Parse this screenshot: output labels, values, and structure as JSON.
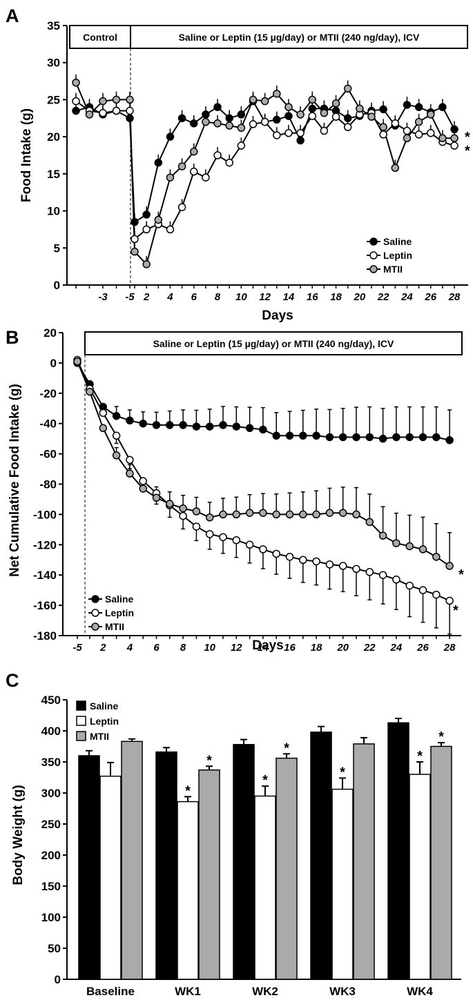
{
  "panels": {
    "a": "A",
    "b": "B",
    "c": "C"
  },
  "colors": {
    "saline": "#000000",
    "leptin": "#ffffff",
    "mtii": "#aaaaaa",
    "axis": "#000000"
  },
  "chart_data": [
    {
      "type": "line",
      "panel": "A",
      "xlabel": "Days",
      "ylabel": "Food Intake (g)",
      "ylim": [
        0,
        35
      ],
      "yticks": [
        "0",
        "5",
        "10",
        "15",
        "20",
        "25",
        "30",
        "35"
      ],
      "xticks": [
        "-3",
        "-5",
        "2",
        "4",
        "6",
        "8",
        "10",
        "12",
        "14",
        "16",
        "18",
        "20",
        "22",
        "24",
        "26",
        "28"
      ],
      "phase_labels": {
        "control": "Control",
        "treatment": "Saline or Leptin (15 µg/day) or MTII (240 ng/day), ICV"
      },
      "x": [
        -9,
        -8,
        -7,
        -6,
        -5,
        1,
        2,
        3,
        4,
        5,
        6,
        7,
        8,
        9,
        10,
        11,
        12,
        13,
        14,
        15,
        16,
        17,
        18,
        19,
        20,
        21,
        22,
        23,
        24,
        25,
        26,
        27,
        28
      ],
      "series": [
        {
          "name": "Saline",
          "key": "saline",
          "values": [
            23.5,
            24.0,
            23.0,
            23.5,
            22.5,
            8.5,
            9.5,
            16.5,
            20.0,
            22.5,
            21.8,
            23.0,
            24.0,
            22.5,
            23.0,
            24.8,
            22.0,
            22.3,
            22.8,
            19.5,
            23.8,
            23.8,
            23.5,
            22.5,
            22.8,
            23.5,
            23.7,
            21.5,
            24.3,
            24.0,
            23.3,
            24.0,
            21.0
          ]
        },
        {
          "name": "Leptin",
          "key": "leptin",
          "values": [
            24.8,
            23.5,
            23.2,
            23.5,
            23.5,
            6.2,
            7.5,
            8.2,
            7.5,
            10.5,
            15.3,
            14.5,
            17.5,
            16.5,
            18.8,
            21.7,
            22.0,
            20.2,
            20.5,
            20.5,
            22.8,
            20.8,
            22.7,
            21.3,
            23.0,
            23.2,
            20.3,
            21.8,
            20.8,
            20.3,
            20.5,
            19.3,
            18.8
          ]
        },
        {
          "name": "MTII",
          "key": "mtii",
          "values": [
            27.3,
            23.0,
            24.8,
            25.0,
            25.0,
            4.5,
            2.8,
            8.8,
            14.5,
            16.0,
            18.0,
            22.0,
            21.8,
            21.5,
            21.2,
            25.0,
            24.8,
            25.8,
            24.0,
            23.0,
            25.0,
            23.2,
            24.5,
            26.5,
            23.8,
            22.7,
            21.3,
            15.8,
            19.8,
            22.0,
            23.0,
            19.8,
            19.8
          ]
        }
      ],
      "legend": [
        "Saline",
        "Leptin",
        "MTII"
      ],
      "legend_placement": "bottom-right",
      "annotations": [
        "*",
        "*"
      ]
    },
    {
      "type": "line",
      "panel": "B",
      "xlabel": "Days",
      "ylabel": "Net Cumulative Food  Intake (g)",
      "ylim": [
        -180,
        20
      ],
      "yticks": [
        "20",
        "0",
        "-20",
        "-40",
        "-60",
        "-80",
        "-100",
        "-120",
        "-140",
        "-160",
        "-180"
      ],
      "xticks": [
        "-5",
        "2",
        "4",
        "6",
        "8",
        "10",
        "12",
        "14",
        "16",
        "18",
        "20",
        "22",
        "24",
        "26",
        "28"
      ],
      "phase_labels": {
        "treatment": "Saline or Leptin (15 µg/day) or MTII (240 ng/day), ICV"
      },
      "x": [
        -5,
        1,
        2,
        3,
        4,
        5,
        6,
        7,
        8,
        9,
        10,
        11,
        12,
        13,
        14,
        15,
        16,
        17,
        18,
        19,
        20,
        21,
        22,
        23,
        24,
        25,
        26,
        27,
        28
      ],
      "series": [
        {
          "name": "Saline",
          "key": "saline",
          "values": [
            0,
            -14,
            -29,
            -35,
            -38,
            -40,
            -41,
            -41,
            -41,
            -42,
            -42,
            -41,
            -42,
            -43,
            -44,
            -48,
            -48,
            -48,
            -48,
            -49,
            -49,
            -49,
            -49,
            -50,
            -49,
            -49,
            -49,
            -49,
            -51
          ]
        },
        {
          "name": "Leptin",
          "key": "leptin",
          "values": [
            2,
            -17,
            -33,
            -48,
            -64,
            -78,
            -86,
            -94,
            -101,
            -108,
            -113,
            -115,
            -117,
            -120,
            -123,
            -126,
            -128,
            -130,
            -131,
            -133,
            -134,
            -136,
            -138,
            -140,
            -143,
            -147,
            -150,
            -153,
            -157
          ]
        },
        {
          "name": "MTII",
          "key": "mtii",
          "values": [
            1,
            -19,
            -43,
            -61,
            -73,
            -83,
            -89,
            -93,
            -96,
            -98,
            -102,
            -100,
            -100,
            -99,
            -99,
            -100,
            -100,
            -100,
            -100,
            -99,
            -99,
            -100,
            -105,
            -114,
            -119,
            -121,
            -123,
            -128,
            -134
          ]
        }
      ],
      "legend": [
        "Saline",
        "Leptin",
        "MTII"
      ],
      "legend_placement": "bottom-left",
      "annotations": [
        "*",
        "*"
      ]
    },
    {
      "type": "bar",
      "panel": "C",
      "ylabel": "Body Weight (g)",
      "ylim": [
        0,
        450
      ],
      "yticks": [
        "0",
        "50",
        "100",
        "150",
        "200",
        "250",
        "300",
        "350",
        "400",
        "450"
      ],
      "categories": [
        "Baseline",
        "WK1",
        "WK2",
        "WK3",
        "WK4"
      ],
      "series": [
        {
          "name": "Saline",
          "key": "saline",
          "values": [
            360,
            366,
            378,
            398,
            413
          ],
          "errors": [
            8,
            7,
            8,
            9,
            7
          ]
        },
        {
          "name": "Leptin",
          "key": "leptin",
          "values": [
            327,
            286,
            295,
            306,
            330
          ],
          "errors": [
            22,
            8,
            16,
            18,
            20
          ]
        },
        {
          "name": "MTII",
          "key": "mtii",
          "values": [
            383,
            337,
            356,
            379,
            375
          ],
          "errors": [
            4,
            6,
            7,
            10,
            6
          ]
        }
      ],
      "significant": {
        "leptin": [
          false,
          true,
          true,
          true,
          true
        ],
        "mtii": [
          false,
          true,
          true,
          false,
          true
        ]
      },
      "star": "*",
      "legend": [
        "Saline",
        "Leptin",
        "MTII"
      ],
      "legend_placement": "top-left"
    }
  ]
}
